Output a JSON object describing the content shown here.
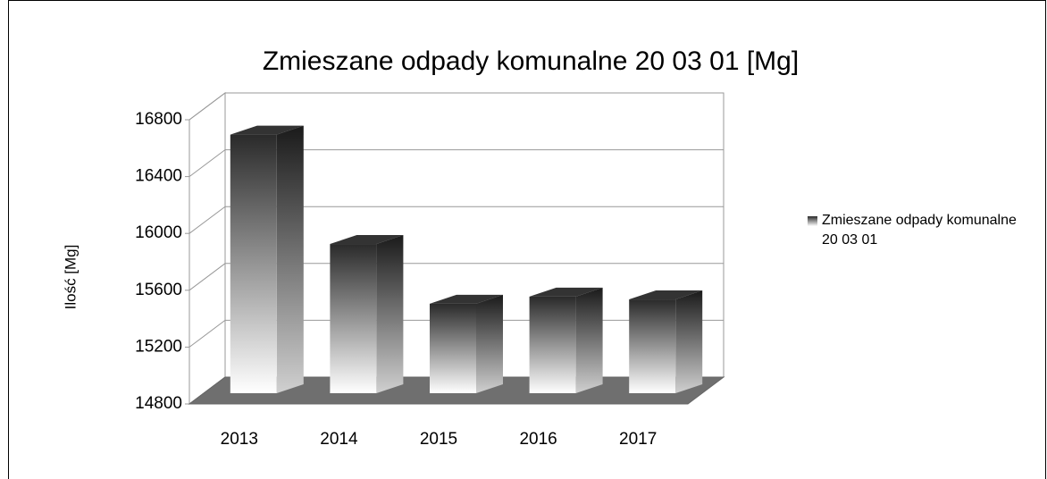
{
  "chart_data": {
    "type": "bar3d",
    "title": "Zmieszane odpady komunalne 20 03 01 [Mg]",
    "y_label": "Ilość [Mg]",
    "categories": [
      "2013",
      "2014",
      "2015",
      "2016",
      "2017"
    ],
    "series": [
      {
        "name": "Zmieszane odpady komunalne 20 03 01",
        "color": "#333333",
        "values": [
          16620,
          15850,
          15430,
          15480,
          15460
        ]
      }
    ],
    "ylim": [
      14800,
      16800
    ],
    "yticks": [
      14800,
      15200,
      15600,
      16000,
      16400,
      16800
    ],
    "grid": true,
    "legend": "right"
  }
}
